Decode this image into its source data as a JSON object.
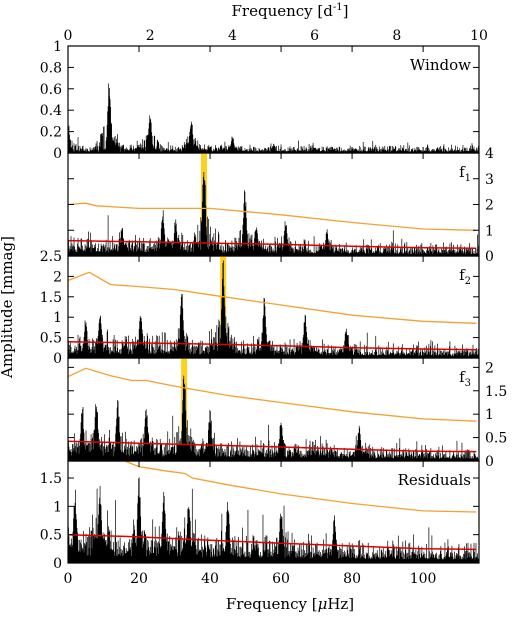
{
  "top_axis": {
    "label": "Frequency [d",
    "label_sup": "-1",
    "label_close": "]",
    "range": [
      0,
      10
    ],
    "ticks": [
      0,
      2,
      4,
      6,
      8,
      10
    ],
    "tick_labels": [
      "0",
      "2",
      "4",
      "6",
      "8",
      "10"
    ]
  },
  "bottom_axis": {
    "label": "Frequency [",
    "label_mu": "μ",
    "label_rest": "Hz]",
    "range": [
      0,
      115.74
    ],
    "ticks": [
      0,
      20,
      40,
      60,
      80,
      100
    ],
    "tick_labels": [
      "0",
      "20",
      "40",
      "60",
      "80",
      "100"
    ]
  },
  "y_axis_label": "Amplitude [mmag]",
  "colors": {
    "spectrum": "#000000",
    "significance": "#f5a030",
    "noise": "#e00000",
    "highlight": "#ffd21a"
  },
  "chart_data": [
    {
      "type": "line",
      "panel": "window",
      "label": "Window",
      "ylim": [
        0,
        1
      ],
      "y_ticks": [
        0,
        0.2,
        0.4,
        0.6,
        0.8,
        1
      ],
      "y_tick_labels": [
        "0",
        "0.2",
        "0.4",
        "0.6",
        "0.8",
        "1"
      ],
      "axis_side": "left",
      "peaks": [
        {
          "x": 0.0,
          "y": 0.32
        },
        {
          "x": 11.6,
          "y": 0.7
        },
        {
          "x": 23.1,
          "y": 0.42
        },
        {
          "x": 34.7,
          "y": 0.35
        },
        {
          "x": 46.3,
          "y": 0.17
        },
        {
          "x": 57.9,
          "y": 0.09
        },
        {
          "x": 69.4,
          "y": 0.06
        },
        {
          "x": 81.0,
          "y": 0.05
        }
      ],
      "noise_level": 0.05
    },
    {
      "type": "line",
      "panel": "f1",
      "label": "f",
      "label_sub": "1",
      "ylim": [
        0,
        4
      ],
      "y_ticks": [
        0,
        1,
        2,
        3,
        4
      ],
      "y_tick_labels": [
        "0",
        "1",
        "2",
        "3",
        "4"
      ],
      "axis_side": "right",
      "highlight_x": 38.3,
      "peaks": [
        {
          "x": 38.3,
          "y": 3.9
        },
        {
          "x": 49.8,
          "y": 2.7
        },
        {
          "x": 26.7,
          "y": 1.9
        },
        {
          "x": 61.3,
          "y": 1.5
        },
        {
          "x": 15.2,
          "y": 1.2
        },
        {
          "x": 72.9,
          "y": 1.1
        },
        {
          "x": 30.3,
          "y": 1.5
        },
        {
          "x": 53.0,
          "y": 1.3
        }
      ],
      "significance_curve": [
        [
          0,
          2.0
        ],
        [
          5,
          2.05
        ],
        [
          8,
          1.95
        ],
        [
          20,
          1.85
        ],
        [
          40,
          1.85
        ],
        [
          60,
          1.6
        ],
        [
          80,
          1.3
        ],
        [
          100,
          1.05
        ],
        [
          115,
          1.0
        ]
      ],
      "noise_curve": [
        [
          0,
          0.6
        ],
        [
          20,
          0.55
        ],
        [
          40,
          0.5
        ],
        [
          60,
          0.45
        ],
        [
          80,
          0.38
        ],
        [
          100,
          0.32
        ],
        [
          115,
          0.3
        ]
      ]
    },
    {
      "type": "line",
      "panel": "f2",
      "label": "f",
      "label_sub": "2",
      "ylim": [
        0,
        2.5
      ],
      "y_ticks": [
        0,
        0.5,
        1,
        1.5,
        2,
        2.5
      ],
      "y_tick_labels": [
        "0",
        "0.5",
        "1",
        "1.5",
        "2",
        "2.5"
      ],
      "axis_side": "left",
      "highlight_x": 43.7,
      "peaks": [
        {
          "x": 43.7,
          "y": 2.45
        },
        {
          "x": 32.0,
          "y": 1.75
        },
        {
          "x": 55.3,
          "y": 1.55
        },
        {
          "x": 66.8,
          "y": 1.15
        },
        {
          "x": 20.5,
          "y": 1.3
        },
        {
          "x": 78.4,
          "y": 0.8
        },
        {
          "x": 9.0,
          "y": 1.2
        },
        {
          "x": 5.0,
          "y": 1.05
        }
      ],
      "significance_curve": [
        [
          0,
          1.9
        ],
        [
          6,
          2.1
        ],
        [
          12,
          1.8
        ],
        [
          20,
          1.75
        ],
        [
          30,
          1.68
        ],
        [
          40,
          1.55
        ],
        [
          60,
          1.3
        ],
        [
          80,
          1.05
        ],
        [
          100,
          0.9
        ],
        [
          115,
          0.85
        ]
      ],
      "noise_curve": [
        [
          0,
          0.4
        ],
        [
          20,
          0.37
        ],
        [
          40,
          0.34
        ],
        [
          60,
          0.3
        ],
        [
          80,
          0.25
        ],
        [
          100,
          0.22
        ],
        [
          115,
          0.2
        ]
      ]
    },
    {
      "type": "line",
      "panel": "f3",
      "label": "f",
      "label_sub": "3",
      "ylim": [
        0,
        2.2
      ],
      "y_ticks": [
        0,
        0.5,
        1,
        1.5,
        2
      ],
      "y_tick_labels": [
        "0",
        "0.5",
        "1",
        "1.5",
        "2"
      ],
      "axis_side": "right",
      "highlight_x": 32.7,
      "peaks": [
        {
          "x": 32.7,
          "y": 2.15
        },
        {
          "x": 8.0,
          "y": 1.45
        },
        {
          "x": 14.0,
          "y": 1.4
        },
        {
          "x": 22.0,
          "y": 1.3
        },
        {
          "x": 40.0,
          "y": 1.2
        },
        {
          "x": 60.0,
          "y": 0.95
        },
        {
          "x": 82.0,
          "y": 0.8
        },
        {
          "x": 4.0,
          "y": 1.2
        }
      ],
      "significance_curve": [
        [
          0,
          1.8
        ],
        [
          5,
          1.98
        ],
        [
          12,
          1.82
        ],
        [
          18,
          1.72
        ],
        [
          22,
          1.72
        ],
        [
          30,
          1.6
        ],
        [
          45,
          1.4
        ],
        [
          60,
          1.25
        ],
        [
          80,
          1.05
        ],
        [
          100,
          0.9
        ],
        [
          115,
          0.85
        ]
      ],
      "noise_curve": [
        [
          0,
          0.42
        ],
        [
          20,
          0.38
        ],
        [
          40,
          0.34
        ],
        [
          60,
          0.3
        ],
        [
          80,
          0.25
        ],
        [
          100,
          0.21
        ],
        [
          115,
          0.2
        ]
      ]
    },
    {
      "type": "line",
      "panel": "residuals",
      "label": "Residuals",
      "ylim": [
        0,
        1.8
      ],
      "y_ticks": [
        0,
        0.5,
        1,
        1.5
      ],
      "y_tick_labels": [
        "0",
        "0.5",
        "1",
        "1.5"
      ],
      "axis_side": "left",
      "peaks": [
        {
          "x": 20.0,
          "y": 1.55
        },
        {
          "x": 9.0,
          "y": 1.45
        },
        {
          "x": 27.0,
          "y": 1.35
        },
        {
          "x": 34.0,
          "y": 1.2
        },
        {
          "x": 45.0,
          "y": 1.15
        },
        {
          "x": 60.0,
          "y": 1.0
        },
        {
          "x": 2.0,
          "y": 1.35
        },
        {
          "x": 75.0,
          "y": 0.85
        }
      ],
      "significance_curve": [
        [
          16,
          1.8
        ],
        [
          20,
          1.7
        ],
        [
          28,
          1.62
        ],
        [
          33,
          1.58
        ],
        [
          35,
          1.5
        ],
        [
          45,
          1.38
        ],
        [
          60,
          1.22
        ],
        [
          80,
          1.05
        ],
        [
          100,
          0.92
        ],
        [
          115,
          0.9
        ]
      ],
      "noise_curve": [
        [
          0,
          0.5
        ],
        [
          20,
          0.46
        ],
        [
          40,
          0.4
        ],
        [
          60,
          0.35
        ],
        [
          80,
          0.3
        ],
        [
          100,
          0.25
        ],
        [
          115,
          0.24
        ]
      ]
    }
  ]
}
